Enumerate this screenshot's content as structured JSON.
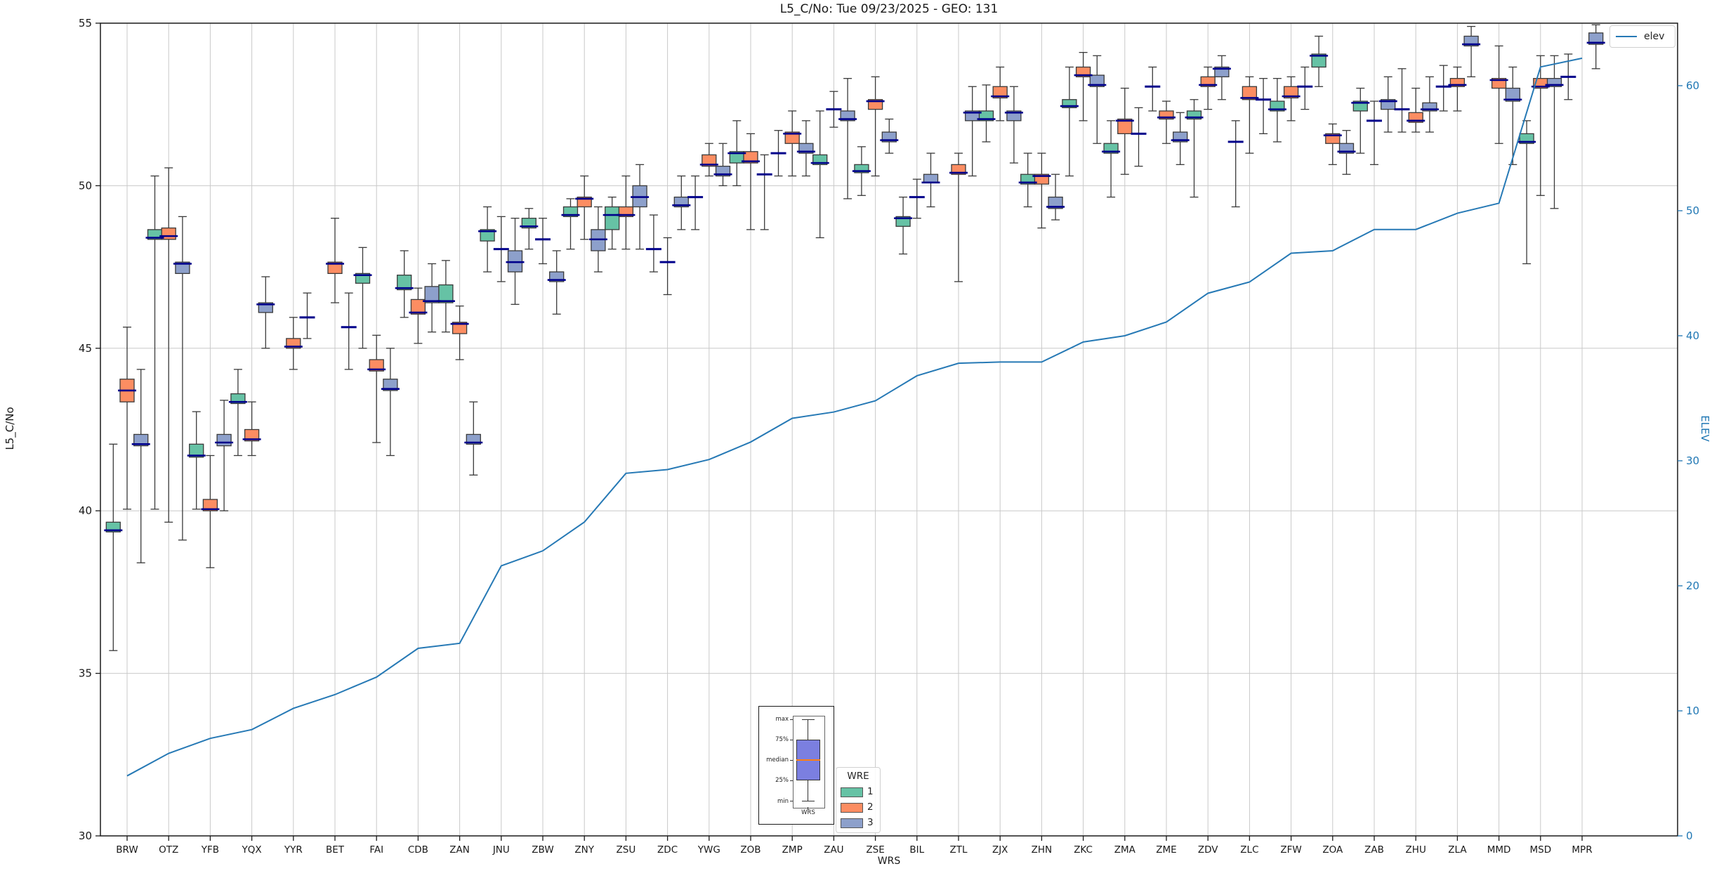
{
  "title": "L5_C/No: Tue 09/23/2025 - GEO: 131",
  "axes": {
    "y_left": {
      "label": "L5_C/No",
      "min": 30,
      "max": 55,
      "ticks": [
        30,
        35,
        40,
        45,
        50,
        55
      ]
    },
    "y_right": {
      "label": "ELEV",
      "min": 0,
      "max": 65,
      "ticks": [
        0,
        10,
        20,
        30,
        40,
        50,
        60
      ]
    },
    "x": {
      "label": "WRS"
    }
  },
  "legend_line": {
    "label": "elev"
  },
  "legend_wre": {
    "title": "WRE",
    "items": [
      {
        "label": "1",
        "color": "#66c2a5"
      },
      {
        "label": "2",
        "color": "#fc8d62"
      },
      {
        "label": "3",
        "color": "#8da0cb"
      }
    ]
  },
  "inset": {
    "labels": [
      "max",
      "75%",
      "median",
      "25%",
      "min"
    ],
    "xlabel": "WRS"
  },
  "colors": {
    "series": {
      "1": "#66c2a5",
      "2": "#fc8d62",
      "3": "#8da0cb"
    },
    "median": "#00008b",
    "whisker": "#3a3a3a",
    "grid": "#c9c9c9",
    "spine": "#1a1a1a",
    "elev_line": "#2679b5",
    "right_axis": "#1f77b4",
    "tick_text": "#191919"
  },
  "chart_data": {
    "type": "boxplot+line",
    "title": "L5_C/No: Tue 09/23/2025 - GEO: 131",
    "xlabel": "WRS",
    "ylabel_left": "L5_C/No",
    "ylabel_right": "ELEV",
    "ylim_left": [
      30,
      55
    ],
    "ylim_right": [
      0,
      65
    ],
    "grid": true,
    "legend_position": "top-right",
    "categories": [
      "BRW",
      "OTZ",
      "YFB",
      "YQX",
      "YYR",
      "BET",
      "FAI",
      "CDB",
      "ZAN",
      "JNU",
      "ZBW",
      "ZNY",
      "ZSU",
      "ZDC",
      "YWG",
      "ZOB",
      "ZMP",
      "ZAU",
      "ZSE",
      "BIL",
      "ZTL",
      "ZJX",
      "ZHN",
      "ZKC",
      "ZMA",
      "ZME",
      "ZDV",
      "ZLC",
      "ZFW",
      "ZOA",
      "ZAB",
      "ZHU",
      "ZLA",
      "MMD",
      "MSD",
      "MPR"
    ],
    "series_names": [
      "1",
      "2",
      "3"
    ],
    "boxes": [
      {
        "c": 0,
        "s": 1,
        "q1": 39.35,
        "q3": 39.65,
        "m": 39.4,
        "lo": 35.7,
        "hi": 42.05
      },
      {
        "c": 0,
        "s": 2,
        "q1": 43.35,
        "q3": 44.05,
        "m": 43.7,
        "lo": 40.05,
        "hi": 45.65
      },
      {
        "c": 0,
        "s": 3,
        "q1": 42.0,
        "q3": 42.35,
        "m": 42.05,
        "lo": 38.4,
        "hi": 44.35
      },
      {
        "c": 1,
        "s": 1,
        "q1": 48.35,
        "q3": 48.65,
        "m": 48.4,
        "lo": 40.05,
        "hi": 50.3
      },
      {
        "c": 1,
        "s": 2,
        "q1": 48.35,
        "q3": 48.7,
        "m": 48.45,
        "lo": 39.65,
        "hi": 50.55
      },
      {
        "c": 1,
        "s": 3,
        "q1": 47.3,
        "q3": 47.65,
        "m": 47.6,
        "lo": 39.1,
        "hi": 49.05
      },
      {
        "c": 2,
        "s": 1,
        "q1": 41.65,
        "q3": 42.05,
        "m": 41.7,
        "lo": 40.05,
        "hi": 43.05
      },
      {
        "c": 2,
        "s": 2,
        "q1": 40.0,
        "q3": 40.35,
        "m": 40.05,
        "lo": 38.25,
        "hi": 41.7
      },
      {
        "c": 2,
        "s": 3,
        "q1": 42.0,
        "q3": 42.35,
        "m": 42.1,
        "lo": 40.0,
        "hi": 43.4
      },
      {
        "c": 3,
        "s": 1,
        "q1": 43.3,
        "q3": 43.6,
        "m": 43.35,
        "lo": 41.7,
        "hi": 44.35
      },
      {
        "c": 3,
        "s": 2,
        "q1": 42.15,
        "q3": 42.5,
        "m": 42.2,
        "lo": 41.7,
        "hi": 43.35
      },
      {
        "c": 3,
        "s": 3,
        "q1": 46.1,
        "q3": 46.4,
        "m": 46.35,
        "lo": 45.0,
        "hi": 47.2
      },
      {
        "c": 4,
        "s": 2,
        "q1": 45.0,
        "q3": 45.3,
        "m": 45.05,
        "lo": 44.35,
        "hi": 45.95
      },
      {
        "c": 4,
        "s": 3,
        "q1": 45.95,
        "q3": 45.95,
        "m": 45.95,
        "lo": 45.3,
        "hi": 46.7
      },
      {
        "c": 5,
        "s": 2,
        "q1": 47.3,
        "q3": 47.65,
        "m": 47.6,
        "lo": 46.4,
        "hi": 49.0
      },
      {
        "c": 5,
        "s": 3,
        "q1": 45.65,
        "q3": 45.65,
        "m": 45.65,
        "lo": 44.35,
        "hi": 46.7
      },
      {
        "c": 6,
        "s": 1,
        "q1": 47.0,
        "q3": 47.3,
        "m": 47.25,
        "lo": 45.0,
        "hi": 48.1
      },
      {
        "c": 6,
        "s": 2,
        "q1": 44.3,
        "q3": 44.65,
        "m": 44.35,
        "lo": 42.1,
        "hi": 45.4
      },
      {
        "c": 6,
        "s": 3,
        "q1": 43.7,
        "q3": 44.05,
        "m": 43.75,
        "lo": 41.7,
        "hi": 45.0
      },
      {
        "c": 7,
        "s": 1,
        "q1": 46.8,
        "q3": 47.25,
        "m": 46.85,
        "lo": 45.95,
        "hi": 48.0
      },
      {
        "c": 7,
        "s": 2,
        "q1": 46.05,
        "q3": 46.5,
        "m": 46.1,
        "lo": 45.15,
        "hi": 46.85
      },
      {
        "c": 7,
        "s": 3,
        "q1": 46.4,
        "q3": 46.9,
        "m": 46.45,
        "lo": 45.5,
        "hi": 47.6
      },
      {
        "c": 8,
        "s": 1,
        "q1": 46.4,
        "q3": 46.95,
        "m": 46.45,
        "lo": 45.5,
        "hi": 47.7
      },
      {
        "c": 8,
        "s": 2,
        "q1": 45.45,
        "q3": 45.8,
        "m": 45.75,
        "lo": 44.65,
        "hi": 46.3
      },
      {
        "c": 8,
        "s": 3,
        "q1": 42.05,
        "q3": 42.35,
        "m": 42.1,
        "lo": 41.1,
        "hi": 43.35
      },
      {
        "c": 9,
        "s": 1,
        "q1": 48.3,
        "q3": 48.65,
        "m": 48.6,
        "lo": 47.35,
        "hi": 49.35
      },
      {
        "c": 9,
        "s": 2,
        "q1": 48.05,
        "q3": 48.05,
        "m": 48.05,
        "lo": 47.05,
        "hi": 49.05
      },
      {
        "c": 9,
        "s": 3,
        "q1": 47.35,
        "q3": 48.0,
        "m": 47.65,
        "lo": 46.35,
        "hi": 49.0
      },
      {
        "c": 10,
        "s": 1,
        "q1": 48.7,
        "q3": 49.0,
        "m": 48.75,
        "lo": 48.05,
        "hi": 49.3
      },
      {
        "c": 10,
        "s": 2,
        "q1": 48.35,
        "q3": 48.35,
        "m": 48.35,
        "lo": 47.6,
        "hi": 49.0
      },
      {
        "c": 10,
        "s": 3,
        "q1": 47.05,
        "q3": 47.35,
        "m": 47.1,
        "lo": 46.05,
        "hi": 48.0
      },
      {
        "c": 11,
        "s": 1,
        "q1": 49.05,
        "q3": 49.35,
        "m": 49.1,
        "lo": 48.05,
        "hi": 49.6
      },
      {
        "c": 11,
        "s": 2,
        "q1": 49.35,
        "q3": 49.65,
        "m": 49.6,
        "lo": 48.35,
        "hi": 50.3
      },
      {
        "c": 11,
        "s": 3,
        "q1": 48.0,
        "q3": 48.65,
        "m": 48.35,
        "lo": 47.35,
        "hi": 49.35
      },
      {
        "c": 12,
        "s": 1,
        "q1": 48.65,
        "q3": 49.35,
        "m": 49.1,
        "lo": 48.05,
        "hi": 49.65
      },
      {
        "c": 12,
        "s": 2,
        "q1": 49.05,
        "q3": 49.35,
        "m": 49.1,
        "lo": 48.05,
        "hi": 50.3
      },
      {
        "c": 12,
        "s": 3,
        "q1": 49.35,
        "q3": 50.0,
        "m": 49.65,
        "lo": 48.05,
        "hi": 50.65
      },
      {
        "c": 13,
        "s": 1,
        "q1": 48.05,
        "q3": 48.05,
        "m": 48.05,
        "lo": 47.35,
        "hi": 49.1
      },
      {
        "c": 13,
        "s": 2,
        "q1": 47.65,
        "q3": 47.65,
        "m": 47.65,
        "lo": 46.65,
        "hi": 48.4
      },
      {
        "c": 13,
        "s": 3,
        "q1": 49.35,
        "q3": 49.65,
        "m": 49.4,
        "lo": 48.65,
        "hi": 50.3
      },
      {
        "c": 14,
        "s": 1,
        "q1": 49.65,
        "q3": 49.65,
        "m": 49.65,
        "lo": 48.65,
        "hi": 50.3
      },
      {
        "c": 14,
        "s": 2,
        "q1": 50.6,
        "q3": 50.95,
        "m": 50.65,
        "lo": 50.3,
        "hi": 51.3
      },
      {
        "c": 14,
        "s": 3,
        "q1": 50.3,
        "q3": 50.6,
        "m": 50.35,
        "lo": 50.0,
        "hi": 51.3
      },
      {
        "c": 15,
        "s": 1,
        "q1": 50.7,
        "q3": 51.05,
        "m": 51.0,
        "lo": 50.0,
        "hi": 52.0
      },
      {
        "c": 15,
        "s": 2,
        "q1": 50.7,
        "q3": 51.05,
        "m": 50.75,
        "lo": 48.65,
        "hi": 51.6
      },
      {
        "c": 15,
        "s": 3,
        "q1": 50.35,
        "q3": 50.35,
        "m": 50.35,
        "lo": 48.65,
        "hi": 50.95
      },
      {
        "c": 16,
        "s": 1,
        "q1": 51.0,
        "q3": 51.0,
        "m": 51.0,
        "lo": 50.3,
        "hi": 51.7
      },
      {
        "c": 16,
        "s": 2,
        "q1": 51.3,
        "q3": 51.65,
        "m": 51.6,
        "lo": 50.3,
        "hi": 52.3
      },
      {
        "c": 16,
        "s": 3,
        "q1": 51.0,
        "q3": 51.3,
        "m": 51.05,
        "lo": 50.3,
        "hi": 52.0
      },
      {
        "c": 17,
        "s": 1,
        "q1": 50.65,
        "q3": 50.95,
        "m": 50.7,
        "lo": 48.4,
        "hi": 52.3
      },
      {
        "c": 17,
        "s": 2,
        "q1": 52.35,
        "q3": 52.35,
        "m": 52.35,
        "lo": 51.8,
        "hi": 52.9
      },
      {
        "c": 17,
        "s": 3,
        "q1": 52.0,
        "q3": 52.3,
        "m": 52.05,
        "lo": 49.6,
        "hi": 53.3
      },
      {
        "c": 18,
        "s": 1,
        "q1": 50.4,
        "q3": 50.65,
        "m": 50.45,
        "lo": 49.7,
        "hi": 51.2
      },
      {
        "c": 18,
        "s": 2,
        "q1": 52.35,
        "q3": 52.65,
        "m": 52.6,
        "lo": 50.3,
        "hi": 53.35
      },
      {
        "c": 18,
        "s": 3,
        "q1": 51.35,
        "q3": 51.65,
        "m": 51.4,
        "lo": 51.0,
        "hi": 52.05
      },
      {
        "c": 19,
        "s": 1,
        "q1": 48.75,
        "q3": 49.05,
        "m": 49.0,
        "lo": 47.9,
        "hi": 49.65
      },
      {
        "c": 19,
        "s": 2,
        "q1": 49.65,
        "q3": 49.65,
        "m": 49.65,
        "lo": 49.0,
        "hi": 50.2
      },
      {
        "c": 19,
        "s": 3,
        "q1": 50.1,
        "q3": 50.35,
        "m": 50.1,
        "lo": 49.35,
        "hi": 51.0
      },
      {
        "c": 20,
        "s": 2,
        "q1": 50.35,
        "q3": 50.65,
        "m": 50.4,
        "lo": 47.05,
        "hi": 51.0
      },
      {
        "c": 20,
        "s": 3,
        "q1": 52.0,
        "q3": 52.3,
        "m": 52.25,
        "lo": 50.3,
        "hi": 53.05
      },
      {
        "c": 21,
        "s": 1,
        "q1": 52.0,
        "q3": 52.3,
        "m": 52.05,
        "lo": 51.35,
        "hi": 53.1
      },
      {
        "c": 21,
        "s": 2,
        "q1": 52.7,
        "q3": 53.05,
        "m": 52.75,
        "lo": 52.0,
        "hi": 53.65
      },
      {
        "c": 21,
        "s": 3,
        "q1": 52.0,
        "q3": 52.3,
        "m": 52.25,
        "lo": 50.7,
        "hi": 53.05
      },
      {
        "c": 22,
        "s": 1,
        "q1": 50.05,
        "q3": 50.35,
        "m": 50.1,
        "lo": 49.35,
        "hi": 51.0
      },
      {
        "c": 22,
        "s": 2,
        "q1": 50.05,
        "q3": 50.35,
        "m": 50.3,
        "lo": 48.7,
        "hi": 51.0
      },
      {
        "c": 22,
        "s": 3,
        "q1": 49.3,
        "q3": 49.65,
        "m": 49.35,
        "lo": 48.95,
        "hi": 50.35
      },
      {
        "c": 23,
        "s": 1,
        "q1": 52.4,
        "q3": 52.65,
        "m": 52.45,
        "lo": 50.3,
        "hi": 53.65
      },
      {
        "c": 23,
        "s": 2,
        "q1": 53.35,
        "q3": 53.65,
        "m": 53.4,
        "lo": 52.0,
        "hi": 54.1
      },
      {
        "c": 23,
        "s": 3,
        "q1": 53.05,
        "q3": 53.4,
        "m": 53.1,
        "lo": 51.3,
        "hi": 54.0
      },
      {
        "c": 24,
        "s": 1,
        "q1": 51.0,
        "q3": 51.3,
        "m": 51.05,
        "lo": 49.65,
        "hi": 52.0
      },
      {
        "c": 24,
        "s": 2,
        "q1": 51.6,
        "q3": 52.05,
        "m": 52.0,
        "lo": 50.35,
        "hi": 53.0
      },
      {
        "c": 24,
        "s": 3,
        "q1": 51.6,
        "q3": 51.6,
        "m": 51.6,
        "lo": 50.6,
        "hi": 52.4
      },
      {
        "c": 25,
        "s": 1,
        "q1": 53.05,
        "q3": 53.05,
        "m": 53.05,
        "lo": 52.3,
        "hi": 53.65
      },
      {
        "c": 25,
        "s": 2,
        "q1": 52.05,
        "q3": 52.3,
        "m": 52.1,
        "lo": 51.3,
        "hi": 52.6
      },
      {
        "c": 25,
        "s": 3,
        "q1": 51.35,
        "q3": 51.65,
        "m": 51.4,
        "lo": 50.65,
        "hi": 52.25
      },
      {
        "c": 26,
        "s": 1,
        "q1": 52.05,
        "q3": 52.3,
        "m": 52.1,
        "lo": 49.65,
        "hi": 52.65
      },
      {
        "c": 26,
        "s": 2,
        "q1": 53.05,
        "q3": 53.35,
        "m": 53.1,
        "lo": 52.35,
        "hi": 53.65
      },
      {
        "c": 26,
        "s": 3,
        "q1": 53.35,
        "q3": 53.65,
        "m": 53.6,
        "lo": 52.65,
        "hi": 54.0
      },
      {
        "c": 27,
        "s": 1,
        "q1": 51.35,
        "q3": 51.35,
        "m": 51.35,
        "lo": 49.35,
        "hi": 52.0
      },
      {
        "c": 27,
        "s": 2,
        "q1": 52.65,
        "q3": 53.05,
        "m": 52.7,
        "lo": 51.0,
        "hi": 53.35
      },
      {
        "c": 27,
        "s": 3,
        "q1": 52.65,
        "q3": 52.65,
        "m": 52.65,
        "lo": 51.6,
        "hi": 53.3
      },
      {
        "c": 28,
        "s": 1,
        "q1": 52.3,
        "q3": 52.6,
        "m": 52.35,
        "lo": 51.35,
        "hi": 53.3
      },
      {
        "c": 28,
        "s": 2,
        "q1": 52.7,
        "q3": 53.05,
        "m": 52.75,
        "lo": 52.0,
        "hi": 53.35
      },
      {
        "c": 28,
        "s": 3,
        "q1": 53.05,
        "q3": 53.05,
        "m": 53.05,
        "lo": 52.35,
        "hi": 53.65
      },
      {
        "c": 29,
        "s": 1,
        "q1": 53.65,
        "q3": 54.05,
        "m": 54.0,
        "lo": 53.05,
        "hi": 54.6
      },
      {
        "c": 29,
        "s": 2,
        "q1": 51.3,
        "q3": 51.6,
        "m": 51.55,
        "lo": 50.65,
        "hi": 51.9
      },
      {
        "c": 29,
        "s": 3,
        "q1": 51.0,
        "q3": 51.3,
        "m": 51.05,
        "lo": 50.35,
        "hi": 51.7
      },
      {
        "c": 30,
        "s": 1,
        "q1": 52.3,
        "q3": 52.6,
        "m": 52.55,
        "lo": 51.0,
        "hi": 53.0
      },
      {
        "c": 30,
        "s": 2,
        "q1": 52.0,
        "q3": 52.0,
        "m": 52.0,
        "lo": 50.65,
        "hi": 52.6
      },
      {
        "c": 30,
        "s": 3,
        "q1": 52.35,
        "q3": 52.65,
        "m": 52.6,
        "lo": 51.65,
        "hi": 53.35
      },
      {
        "c": 31,
        "s": 1,
        "q1": 52.35,
        "q3": 52.35,
        "m": 52.35,
        "lo": 51.65,
        "hi": 53.6
      },
      {
        "c": 31,
        "s": 2,
        "q1": 51.95,
        "q3": 52.25,
        "m": 52.0,
        "lo": 51.65,
        "hi": 53.0
      },
      {
        "c": 31,
        "s": 3,
        "q1": 52.3,
        "q3": 52.55,
        "m": 52.35,
        "lo": 51.65,
        "hi": 53.35
      },
      {
        "c": 32,
        "s": 1,
        "q1": 53.05,
        "q3": 53.05,
        "m": 53.05,
        "lo": 52.3,
        "hi": 53.7
      },
      {
        "c": 32,
        "s": 2,
        "q1": 53.05,
        "q3": 53.3,
        "m": 53.1,
        "lo": 52.3,
        "hi": 53.65
      },
      {
        "c": 32,
        "s": 3,
        "q1": 54.3,
        "q3": 54.6,
        "m": 54.35,
        "lo": 53.35,
        "hi": 54.9
      },
      {
        "c": 33,
        "s": 2,
        "q1": 53.0,
        "q3": 53.3,
        "m": 53.25,
        "lo": 51.3,
        "hi": 54.3
      },
      {
        "c": 33,
        "s": 3,
        "q1": 52.6,
        "q3": 53.0,
        "m": 52.65,
        "lo": 50.65,
        "hi": 53.65
      },
      {
        "c": 34,
        "s": 1,
        "q1": 51.3,
        "q3": 51.6,
        "m": 51.35,
        "lo": 47.6,
        "hi": 52.0
      },
      {
        "c": 34,
        "s": 2,
        "q1": 53.0,
        "q3": 53.3,
        "m": 53.05,
        "lo": 49.7,
        "hi": 54.0
      },
      {
        "c": 34,
        "s": 3,
        "q1": 53.05,
        "q3": 53.3,
        "m": 53.1,
        "lo": 49.3,
        "hi": 54.0
      },
      {
        "c": 35,
        "s": 1,
        "q1": 53.35,
        "q3": 53.35,
        "m": 53.35,
        "lo": 52.65,
        "hi": 54.05
      },
      {
        "c": 35,
        "s": 3,
        "q1": 54.35,
        "q3": 54.7,
        "m": 54.4,
        "lo": 53.6,
        "hi": 54.95
      }
    ],
    "elev_series": {
      "name": "elev",
      "values": [
        4.8,
        6.6,
        7.8,
        8.5,
        10.2,
        11.3,
        12.7,
        15.0,
        15.4,
        21.6,
        22.8,
        25.1,
        29.0,
        29.3,
        30.1,
        31.5,
        33.4,
        33.9,
        34.8,
        36.8,
        37.8,
        37.9,
        37.9,
        39.5,
        40.0,
        41.1,
        43.4,
        44.3,
        46.6,
        46.8,
        48.5,
        48.5,
        49.8,
        50.6,
        61.5,
        62.2
      ]
    }
  }
}
